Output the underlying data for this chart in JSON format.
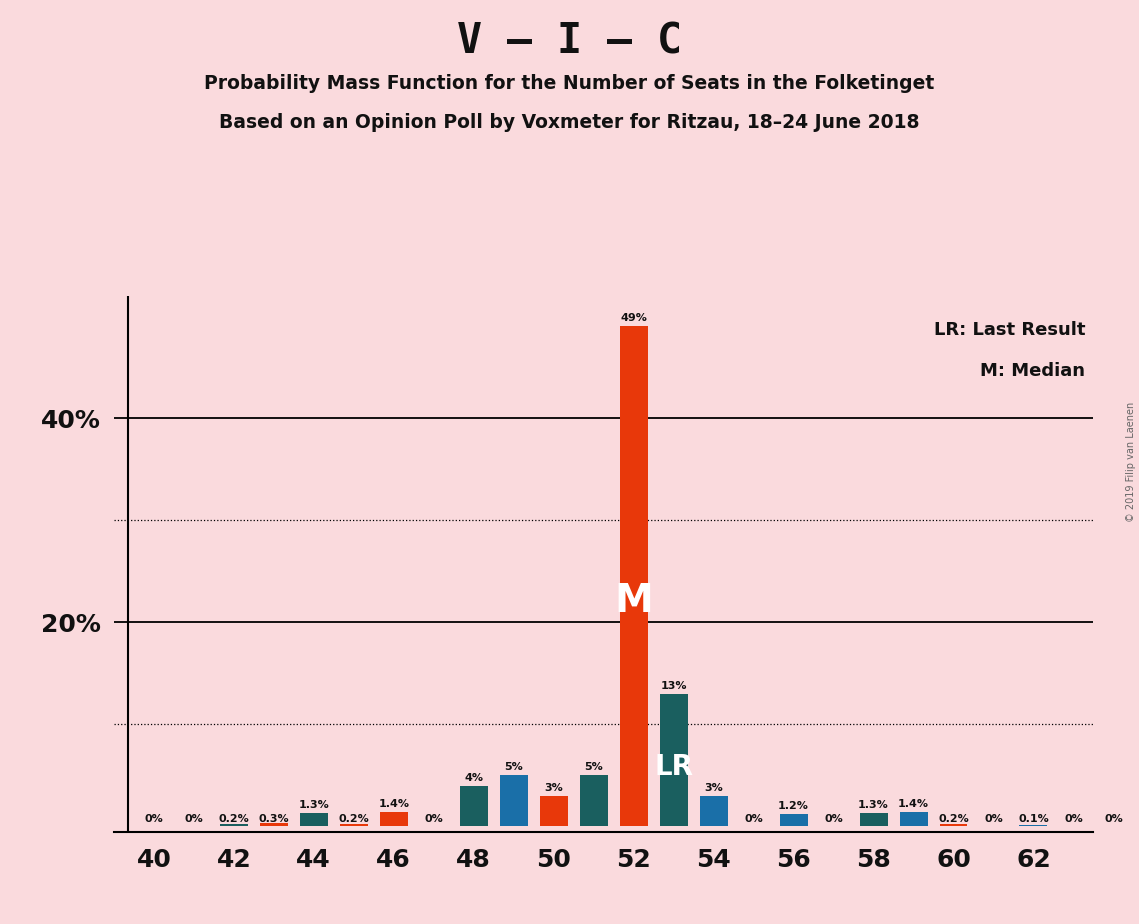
{
  "title_main": "V – I – C",
  "subtitle1": "Probability Mass Function for the Number of Seats in the Folketinget",
  "subtitle2": "Based on an Opinion Poll by Voxmeter for Ritzau, 18–24 June 2018",
  "copyright": "© 2019 Filip van Laenen",
  "legend_lr": "LR: Last Result",
  "legend_m": "M: Median",
  "background_color": "#fadadd",
  "bar_color_blue": "#1a6fa8",
  "bar_color_orange": "#e8380a",
  "bar_color_teal": "#1a5f5f",
  "seat_values": [
    0.0,
    0.0,
    0.2,
    0.3,
    1.3,
    0.2,
    1.4,
    0.0,
    4.0,
    5.0,
    3.0,
    5.0,
    49.0,
    13.0,
    3.0,
    0.0,
    1.2,
    0.0,
    1.3,
    1.4,
    0.2,
    0.0,
    0.1,
    0.0,
    0.0
  ],
  "seat_colors": [
    "blue",
    "blue",
    "teal",
    "orange",
    "teal",
    "orange",
    "orange",
    "blue",
    "teal",
    "blue",
    "orange",
    "teal",
    "orange",
    "teal",
    "blue",
    "orange",
    "blue",
    "teal",
    "teal",
    "blue",
    "orange",
    "blue",
    "blue",
    "blue",
    "blue"
  ],
  "seat_labels": [
    "0%",
    "0%",
    "0.2%",
    "0.3%",
    "1.3%",
    "0.2%",
    "1.4%",
    "0%",
    "4%",
    "5%",
    "3%",
    "5%",
    "49%",
    "13%",
    "3%",
    "0%",
    "1.2%",
    "0%",
    "1.3%",
    "1.4%",
    "0.2%",
    "0%",
    "0.1%",
    "0%",
    "0%"
  ],
  "seats_start": 40,
  "median_idx": 12,
  "lr_idx": 13,
  "xticks": [
    40,
    42,
    44,
    46,
    48,
    50,
    52,
    54,
    56,
    58,
    60,
    62
  ],
  "ytick_solid": [
    20,
    40
  ],
  "ytick_dotted": [
    10,
    30
  ],
  "ylim_max": 52,
  "bar_width": 0.7
}
